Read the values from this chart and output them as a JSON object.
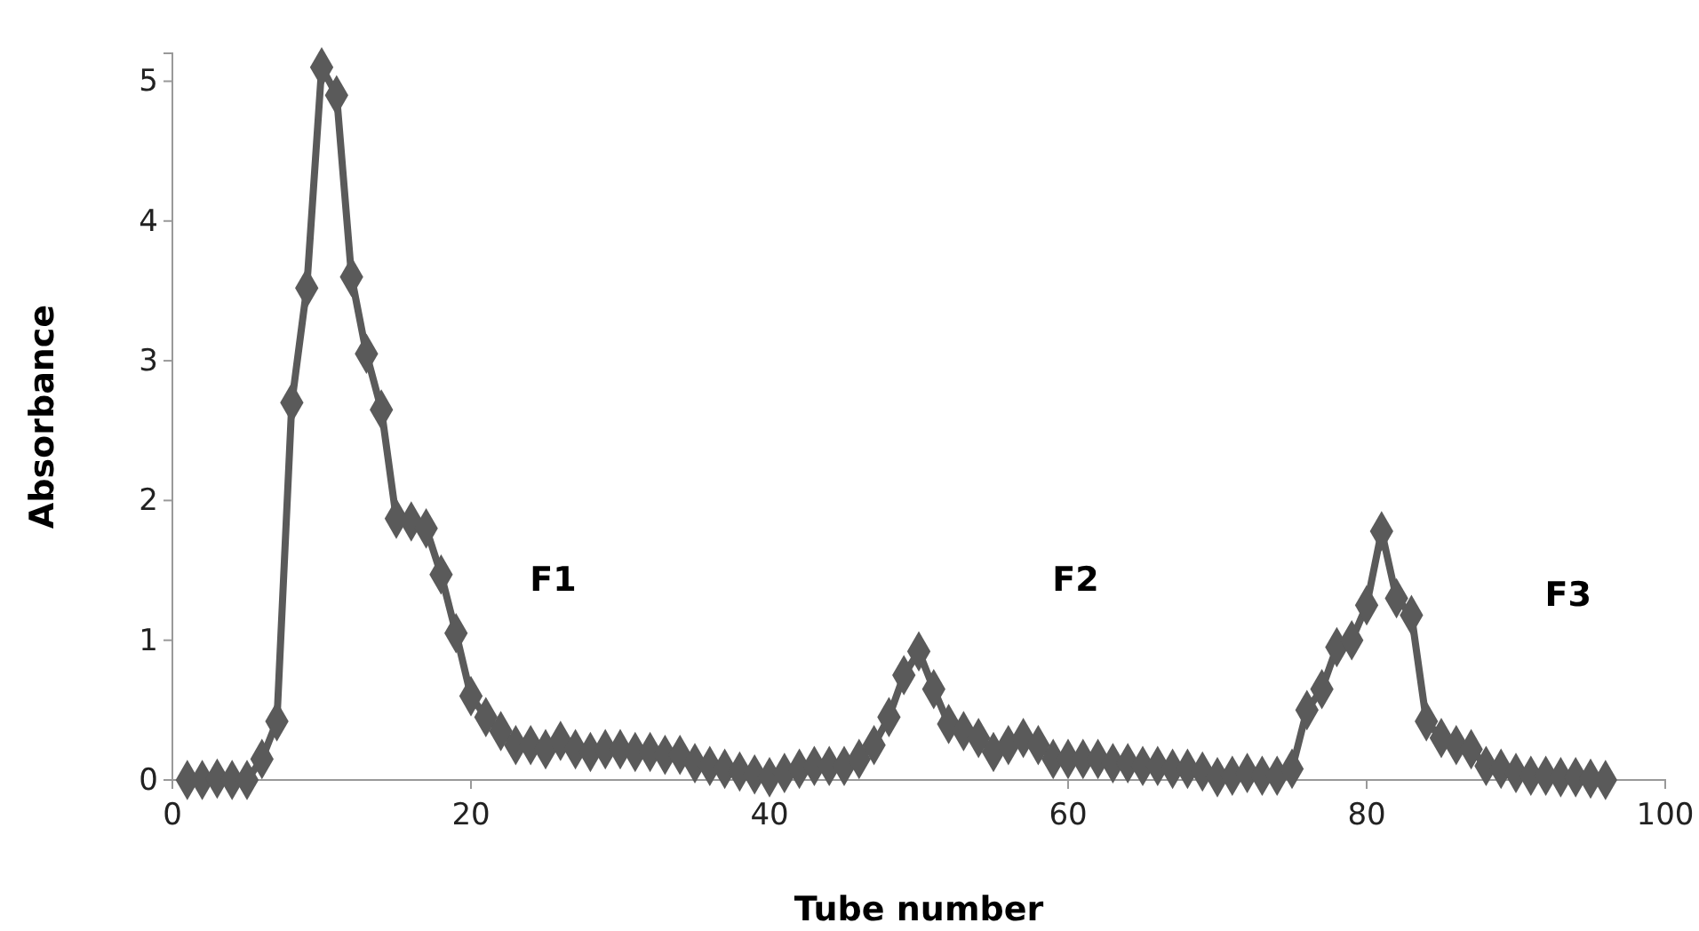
{
  "chart_data": {
    "type": "line",
    "xlabel": "Tube number",
    "ylabel": "Absorbance",
    "marker": "diamond",
    "grid": false,
    "xlim": [
      0,
      100
    ],
    "xticks": [
      0,
      20,
      40,
      60,
      80,
      100
    ],
    "ylim": [
      0,
      5.2
    ],
    "yticks": [
      0,
      1,
      2,
      3,
      4,
      5
    ],
    "x": [
      1,
      2,
      3,
      4,
      5,
      6,
      7,
      8,
      9,
      10,
      11,
      12,
      13,
      14,
      15,
      16,
      17,
      18,
      19,
      20,
      21,
      22,
      23,
      24,
      25,
      26,
      27,
      28,
      29,
      30,
      31,
      32,
      33,
      34,
      35,
      36,
      37,
      38,
      39,
      40,
      41,
      42,
      43,
      44,
      45,
      46,
      47,
      48,
      49,
      50,
      51,
      52,
      53,
      54,
      55,
      56,
      57,
      58,
      59,
      60,
      61,
      62,
      63,
      64,
      65,
      66,
      67,
      68,
      69,
      70,
      71,
      72,
      73,
      74,
      75,
      76,
      77,
      78,
      79,
      80,
      81,
      82,
      83,
      84,
      85,
      86,
      87,
      88,
      89,
      90,
      91,
      92,
      93,
      94,
      95,
      96
    ],
    "series": [
      {
        "color": "#5a5a5a",
        "values": [
          0,
          0,
          0.01,
          0,
          0,
          0.15,
          0.42,
          2.7,
          3.52,
          5.1,
          4.9,
          3.6,
          3.05,
          2.65,
          1.87,
          1.85,
          1.8,
          1.47,
          1.05,
          0.6,
          0.45,
          0.35,
          0.25,
          0.25,
          0.22,
          0.28,
          0.22,
          0.2,
          0.22,
          0.22,
          0.2,
          0.2,
          0.18,
          0.18,
          0.12,
          0.1,
          0.08,
          0.06,
          0.04,
          0.02,
          0.05,
          0.08,
          0.1,
          0.1,
          0.1,
          0.15,
          0.25,
          0.45,
          0.75,
          0.92,
          0.65,
          0.4,
          0.35,
          0.3,
          0.2,
          0.25,
          0.3,
          0.25,
          0.15,
          0.15,
          0.15,
          0.15,
          0.12,
          0.12,
          0.1,
          0.1,
          0.08,
          0.08,
          0.06,
          0.02,
          0.03,
          0.05,
          0.03,
          0.03,
          0.08,
          0.5,
          0.65,
          0.95,
          1.0,
          1.25,
          1.78,
          1.3,
          1.18,
          0.42,
          0.3,
          0.25,
          0.22,
          0.1,
          0.08,
          0.05,
          0.03,
          0.03,
          0.02,
          0.02,
          0.01,
          0
        ]
      }
    ],
    "annotations": [
      "F1",
      "F2",
      "F3"
    ]
  }
}
